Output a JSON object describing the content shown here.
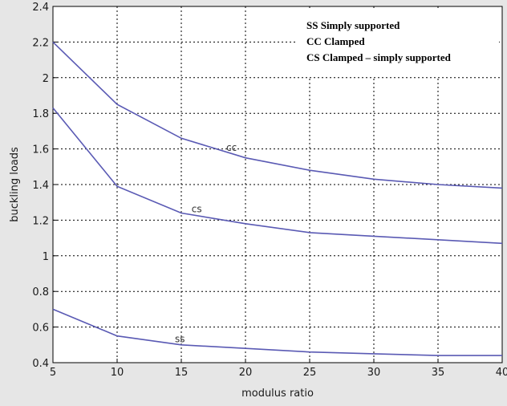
{
  "chart_data": {
    "type": "line",
    "xlabel": "modulus ratio",
    "ylabel": "buckling loads",
    "xlim": [
      5,
      40
    ],
    "ylim": [
      0.4,
      2.4
    ],
    "xticks": [
      5,
      10,
      15,
      20,
      25,
      30,
      35,
      40
    ],
    "yticks": [
      0.4,
      0.6,
      0.8,
      1,
      1.2,
      1.4,
      1.6,
      1.8,
      2,
      2.2,
      2.4
    ],
    "grid": true,
    "x": [
      5,
      10,
      15,
      20,
      25,
      30,
      35,
      40
    ],
    "series": [
      {
        "name": "CC",
        "values": [
          2.2,
          1.85,
          1.66,
          1.55,
          1.48,
          1.43,
          1.4,
          1.38
        ]
      },
      {
        "name": "CS",
        "values": [
          1.83,
          1.39,
          1.24,
          1.18,
          1.13,
          1.11,
          1.09,
          1.07
        ]
      },
      {
        "name": "SS",
        "values": [
          0.7,
          0.55,
          0.5,
          0.48,
          0.46,
          0.45,
          0.44,
          0.44
        ]
      }
    ],
    "series_labels": [
      {
        "text": "cc",
        "x": 18.5,
        "y": 1.59
      },
      {
        "text": "cs",
        "x": 15.8,
        "y": 1.245
      },
      {
        "text": "ss",
        "x": 14.5,
        "y": 0.515
      }
    ],
    "legend": {
      "position": "top-right",
      "entries": [
        "SS  Simply supported",
        "CC Clamped",
        "CS  Clamped – simply supported"
      ]
    },
    "line_color": "#5a5ab4"
  }
}
